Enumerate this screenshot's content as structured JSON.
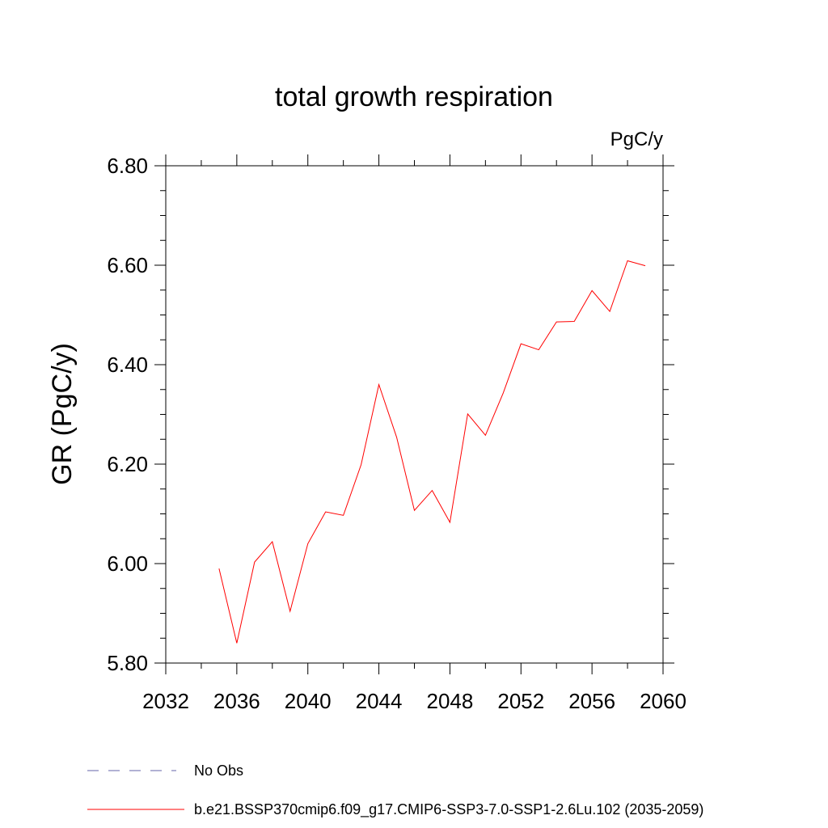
{
  "chart_data": {
    "type": "line",
    "title": "total growth respiration",
    "units_label": "PgC/y",
    "ylabel": "GR  (PgC/y)",
    "xlabel": "",
    "xlim": [
      2032,
      2060
    ],
    "ylim": [
      5.8,
      6.8
    ],
    "x_ticks": [
      2032,
      2036,
      2040,
      2044,
      2048,
      2052,
      2056,
      2060
    ],
    "x_tick_labels": [
      "2032",
      "2036",
      "2040",
      "2044",
      "2048",
      "2052",
      "2056",
      "2060"
    ],
    "y_ticks": [
      5.8,
      6.0,
      6.2,
      6.4,
      6.6,
      6.8
    ],
    "y_tick_labels": [
      "5.80",
      "6.00",
      "6.20",
      "6.40",
      "6.60",
      "6.80"
    ],
    "grid": false,
    "legend_position": "bottom",
    "series": [
      {
        "name": "b.e21.BSSP370cmip6.f09_g17.CMIP6-SSP3-7.0-SSP1-2.6Lu.102 (2035-2059)",
        "color": "#ff0000",
        "style": "solid",
        "x": [
          2035,
          2036,
          2037,
          2038,
          2039,
          2040,
          2041,
          2042,
          2043,
          2044,
          2045,
          2046,
          2047,
          2048,
          2049,
          2050,
          2051,
          2052,
          2053,
          2054,
          2055,
          2056,
          2057,
          2058,
          2059
        ],
        "values": [
          5.99,
          5.84,
          6.003,
          6.044,
          5.904,
          6.04,
          6.104,
          6.097,
          6.199,
          6.36,
          6.254,
          6.107,
          6.147,
          6.083,
          6.301,
          6.258,
          6.343,
          6.442,
          6.43,
          6.486,
          6.487,
          6.549,
          6.507,
          6.609,
          6.599
        ]
      }
    ],
    "legend": [
      {
        "label": "No Obs",
        "color": "#6666aa",
        "style": "dashed"
      },
      {
        "label": "b.e21.BSSP370cmip6.f09_g17.CMIP6-SSP3-7.0-SSP1-2.6Lu.102 (2035-2059)",
        "color": "#ff0000",
        "style": "solid"
      }
    ]
  }
}
